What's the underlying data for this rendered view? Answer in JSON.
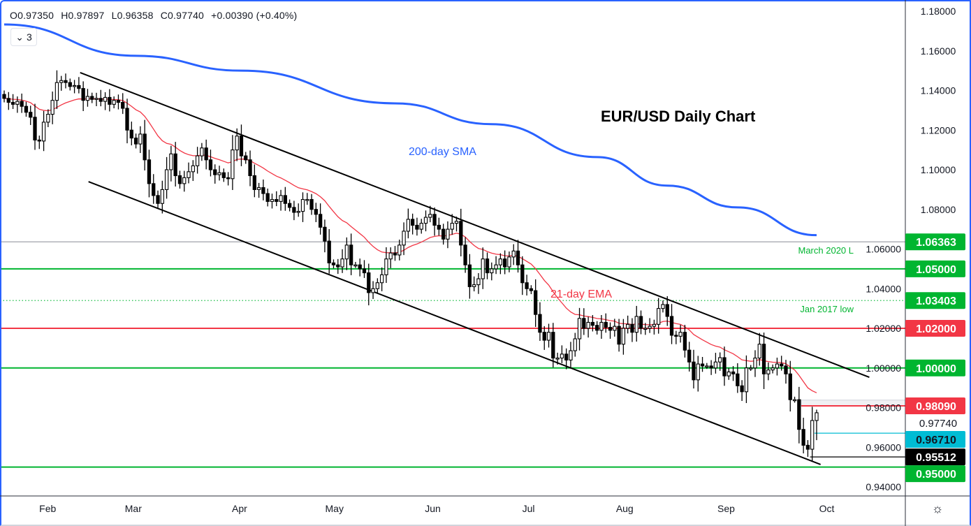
{
  "header": {
    "open": "O0.97350",
    "high": "H0.97897",
    "low": "L0.96358",
    "close": "C0.97740",
    "change": "+0.00390 (+0.40%)",
    "indicator_count": "3"
  },
  "settings_icon": "gear-icon",
  "colors": {
    "up": "#ffffff",
    "down": "#000000",
    "ema": "#f23645",
    "sma": "#2962ff",
    "green": "#00b530",
    "red": "#f23645",
    "cyan": "#00bcd4",
    "black": "#000000"
  },
  "chart_data": {
    "type": "candlestick",
    "title": "EUR/USD Daily Chart",
    "ylim": [
      0.93,
      1.185
    ],
    "yticks": [
      1.18,
      1.16,
      1.14,
      1.12,
      1.1,
      1.08,
      1.06,
      1.04,
      1.02,
      1.0,
      0.98,
      0.96,
      0.94
    ],
    "ytick_labels": [
      "1.18000",
      "1.16000",
      "1.14000",
      "1.12000",
      "1.10000",
      "1.08000",
      "1.06000",
      "1.04000",
      "1.02000",
      "1.00000",
      "0.98000",
      "0.96000",
      "0.94000"
    ],
    "xticks": [
      {
        "label": "Feb",
        "i": 9.9
      },
      {
        "label": "Mar",
        "i": 29.4
      },
      {
        "label": "Apr",
        "i": 53.6
      },
      {
        "label": "May",
        "i": 75.2
      },
      {
        "label": "Jun",
        "i": 97.6
      },
      {
        "label": "Jul",
        "i": 119.4
      },
      {
        "label": "Aug",
        "i": 141.3
      },
      {
        "label": "Sep",
        "i": 164.4
      },
      {
        "label": "Oct",
        "i": 187.3
      }
    ],
    "closes": [
      1.136,
      1.134,
      1.133,
      1.1345,
      1.132,
      1.129,
      1.1265,
      1.115,
      1.1145,
      1.124,
      1.128,
      1.135,
      1.144,
      1.145,
      1.144,
      1.142,
      1.1425,
      1.141,
      1.135,
      1.137,
      1.1355,
      1.136,
      1.1345,
      1.1365,
      1.133,
      1.135,
      1.134,
      1.131,
      1.12,
      1.116,
      1.113,
      1.118,
      1.105,
      1.093,
      1.087,
      1.083,
      1.09,
      1.1,
      1.108,
      1.097,
      1.093,
      1.096,
      1.099,
      1.102,
      1.107,
      1.111,
      1.105,
      1.1,
      1.0975,
      1.0985,
      1.096,
      1.0955,
      1.11,
      1.117,
      1.107,
      1.105,
      1.097,
      1.09,
      1.091,
      1.088,
      1.084,
      1.085,
      1.084,
      1.087,
      1.083,
      1.081,
      1.0785,
      1.079,
      1.085,
      1.085,
      1.08,
      1.0775,
      1.071,
      1.064,
      1.053,
      1.052,
      1.051,
      1.055,
      1.062,
      1.052,
      1.052,
      1.05,
      1.048,
      1.038,
      1.04,
      1.043,
      1.047,
      1.055,
      1.058,
      1.057,
      1.062,
      1.069,
      1.075,
      1.072,
      1.07,
      1.073,
      1.076,
      1.0775,
      1.072,
      1.07,
      1.065,
      1.07,
      1.073,
      1.074,
      1.062,
      1.052,
      1.041,
      1.042,
      1.045,
      1.055,
      1.048,
      1.05,
      1.052,
      1.055,
      1.051,
      1.056,
      1.059,
      1.052,
      1.043,
      1.04,
      1.039,
      1.027,
      1.018,
      1.014,
      1.018,
      1.005,
      1.005,
      1.007,
      1.004,
      1.0087,
      1.0147,
      1.025,
      1.02,
      1.023,
      1.0215,
      1.019,
      1.023,
      1.0205,
      1.019,
      1.021,
      1.012,
      1.02,
      1.022,
      1.018,
      1.026,
      1.02,
      1.02,
      1.021,
      1.022,
      1.03,
      1.032,
      1.026,
      1.0165,
      1.016,
      1.018,
      1.009,
      1.003,
      0.994,
      1.002,
      1.001,
      1.001,
      1.0,
      1.003,
      1.0052,
      0.996,
      0.998,
      0.997,
      0.991,
      0.988,
      1.0,
      1.0,
      1.005,
      1.012,
      0.997,
      0.999,
      1.0,
      1.002,
      1.001,
      0.997,
      0.984,
      0.984,
      0.969,
      0.961,
      0.959,
      0.9735,
      0.9774
    ],
    "last_candle": {
      "open": 0.9735,
      "high": 0.97897,
      "low": 0.96358,
      "close": 0.9774
    },
    "sma200": [
      [
        0,
        1.1733
      ],
      [
        30,
        1.1575
      ],
      [
        54,
        1.15
      ],
      [
        89,
        1.1335
      ],
      [
        111,
        1.123
      ],
      [
        135,
        1.1064
      ],
      [
        151,
        1.092
      ],
      [
        167,
        1.081
      ],
      [
        185,
        1.067
      ]
    ],
    "channel_upper": [
      [
        17.3,
        1.149
      ],
      [
        197,
        0.9953
      ]
    ],
    "channel_lower": [
      [
        19.2,
        1.094
      ],
      [
        185.9,
        0.9513
      ]
    ],
    "levels": [
      {
        "value": 1.06363,
        "label": "1.06363",
        "color": "#00b530",
        "line": "#9598a1",
        "style": "thin",
        "annotation": "March 2020 L"
      },
      {
        "value": 1.05,
        "label": "1.05000",
        "color": "#00b530",
        "line": "#00b530",
        "style": "solid"
      },
      {
        "value": 1.03403,
        "label": "1.03403",
        "color": "#00b530",
        "line": "#00b530",
        "style": "dotted",
        "annotation": "Jan 2017 low"
      },
      {
        "value": 1.02,
        "label": "1.02000",
        "color": "#f23645",
        "line": "#f23645",
        "style": "solid"
      },
      {
        "value": 1.0,
        "label": "1.00000",
        "color": "#00b530",
        "line": "#00b530",
        "style": "solid"
      },
      {
        "value": 0.9809,
        "label": "0.98090",
        "color": "#f23645",
        "line": "#f23645",
        "style": "partial",
        "from_i": 181.5
      },
      {
        "value": 0.9671,
        "label": "0.96710",
        "color": "#00bcd4",
        "line": "#00bcd4",
        "style": "partial",
        "from_i": 184.5
      },
      {
        "value": 0.95512,
        "label": "0.95512",
        "color": "#000000",
        "line": "#000000",
        "style": "partial",
        "from_i": 183.5
      },
      {
        "value": 0.95,
        "label": "0.95000",
        "color": "#00b530",
        "line": "#00b530",
        "style": "solid"
      }
    ],
    "zone": {
      "from": 0.9809,
      "to": 0.9838,
      "from_i": 181.5
    },
    "current_price_label": "0.97740",
    "annotations": [
      {
        "text": "EUR/USD Daily Chart",
        "color": "#000000"
      },
      {
        "text": "200-day SMA",
        "color": "#2962ff"
      },
      {
        "text": "21-day EMA",
        "color": "#f23645"
      }
    ]
  }
}
